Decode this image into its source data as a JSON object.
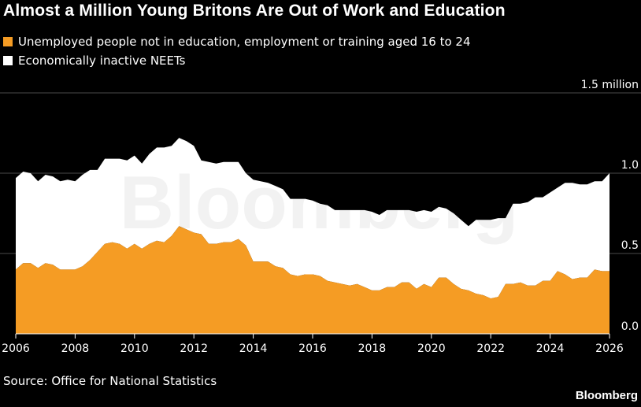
{
  "title": "Almost a Million Young Britons Are Out of Work and Education",
  "legend": [
    {
      "label": "Unemployed people not in education, employment or training aged 16 to 24",
      "color": "#f59c24"
    },
    {
      "label": "Economically inactive NEETs",
      "color": "#ffffff"
    }
  ],
  "source": "Source: Office for National Statistics",
  "brand": "Bloomberg",
  "watermark": "Bloomberg",
  "chart_data": {
    "type": "area",
    "stacked": true,
    "title": "Almost a Million Young Britons Are Out of Work and Education",
    "xlabel": "",
    "ylabel": "",
    "xlim": [
      2006,
      2026
    ],
    "ylim": [
      0,
      1.5
    ],
    "x_ticks": [
      2006,
      2008,
      2010,
      2012,
      2014,
      2016,
      2018,
      2020,
      2022,
      2024,
      2026
    ],
    "y_ticks": [
      0,
      0.5,
      1.0,
      1.5
    ],
    "y_tick_labels": [
      "0.0",
      "0.5",
      "1.0",
      "1.5 million"
    ],
    "grid": "horizontal",
    "legend_position": "top-left",
    "x": [
      2006.0,
      2006.25,
      2006.5,
      2006.75,
      2007.0,
      2007.25,
      2007.5,
      2007.75,
      2008.0,
      2008.25,
      2008.5,
      2008.75,
      2009.0,
      2009.25,
      2009.5,
      2009.75,
      2010.0,
      2010.25,
      2010.5,
      2010.75,
      2011.0,
      2011.25,
      2011.5,
      2011.75,
      2012.0,
      2012.25,
      2012.5,
      2012.75,
      2013.0,
      2013.25,
      2013.5,
      2013.75,
      2014.0,
      2014.25,
      2014.5,
      2014.75,
      2015.0,
      2015.25,
      2015.5,
      2015.75,
      2016.0,
      2016.25,
      2016.5,
      2016.75,
      2017.0,
      2017.25,
      2017.5,
      2017.75,
      2018.0,
      2018.25,
      2018.5,
      2018.75,
      2019.0,
      2019.25,
      2019.5,
      2019.75,
      2020.0,
      2020.25,
      2020.5,
      2020.75,
      2021.0,
      2021.25,
      2021.5,
      2021.75,
      2022.0,
      2022.25,
      2022.5,
      2022.75,
      2023.0,
      2023.25,
      2023.5,
      2023.75,
      2024.0,
      2024.25,
      2024.5,
      2024.75,
      2025.0,
      2025.25,
      2025.5,
      2025.75,
      2026.0
    ],
    "series": [
      {
        "name": "Unemployed people not in education, employment or training aged 16 to 24",
        "color": "#f59c24",
        "values": [
          0.4,
          0.44,
          0.44,
          0.41,
          0.44,
          0.43,
          0.4,
          0.4,
          0.4,
          0.42,
          0.46,
          0.51,
          0.56,
          0.57,
          0.56,
          0.53,
          0.56,
          0.53,
          0.56,
          0.58,
          0.57,
          0.61,
          0.67,
          0.65,
          0.63,
          0.62,
          0.56,
          0.56,
          0.57,
          0.57,
          0.59,
          0.55,
          0.45,
          0.45,
          0.45,
          0.42,
          0.41,
          0.37,
          0.36,
          0.37,
          0.37,
          0.36,
          0.33,
          0.32,
          0.31,
          0.3,
          0.31,
          0.29,
          0.27,
          0.27,
          0.29,
          0.29,
          0.32,
          0.32,
          0.28,
          0.31,
          0.29,
          0.35,
          0.35,
          0.31,
          0.28,
          0.27,
          0.25,
          0.24,
          0.22,
          0.23,
          0.31,
          0.31,
          0.32,
          0.3,
          0.3,
          0.33,
          0.33,
          0.39,
          0.37,
          0.34,
          0.35,
          0.35,
          0.4,
          0.39,
          0.39
        ]
      },
      {
        "name": "Economically inactive NEETs",
        "color": "#ffffff",
        "values": [
          0.57,
          0.57,
          0.56,
          0.54,
          0.55,
          0.55,
          0.55,
          0.56,
          0.55,
          0.57,
          0.56,
          0.51,
          0.53,
          0.52,
          0.53,
          0.55,
          0.55,
          0.53,
          0.56,
          0.58,
          0.59,
          0.56,
          0.55,
          0.55,
          0.54,
          0.46,
          0.51,
          0.5,
          0.5,
          0.5,
          0.48,
          0.45,
          0.51,
          0.5,
          0.49,
          0.5,
          0.49,
          0.47,
          0.48,
          0.47,
          0.46,
          0.45,
          0.47,
          0.45,
          0.46,
          0.47,
          0.46,
          0.48,
          0.49,
          0.47,
          0.48,
          0.48,
          0.45,
          0.45,
          0.48,
          0.46,
          0.47,
          0.44,
          0.43,
          0.44,
          0.43,
          0.4,
          0.46,
          0.47,
          0.49,
          0.49,
          0.41,
          0.5,
          0.49,
          0.52,
          0.55,
          0.52,
          0.55,
          0.52,
          0.57,
          0.6,
          0.58,
          0.58,
          0.55,
          0.56,
          0.61
        ]
      }
    ]
  }
}
